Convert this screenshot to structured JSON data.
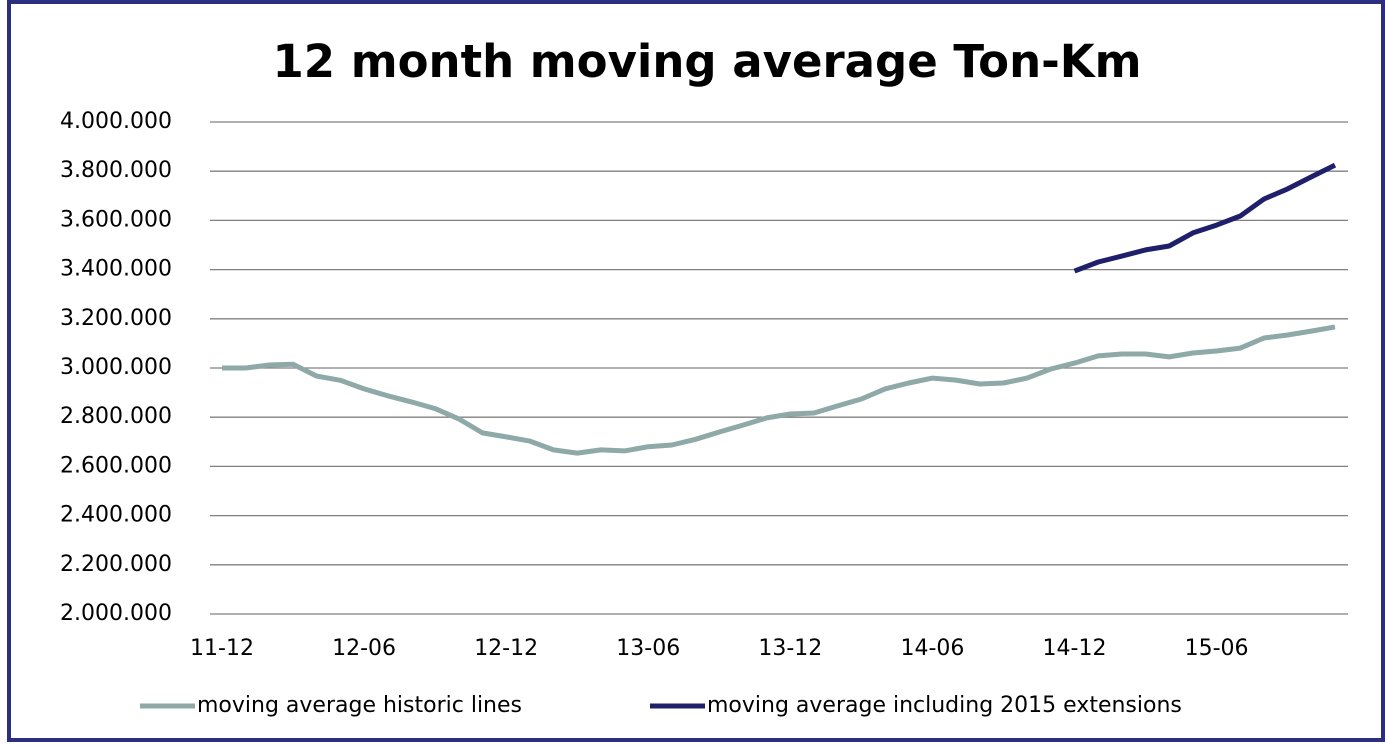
{
  "chart_data": {
    "type": "line",
    "title": "12 month moving average Ton-Km",
    "categories": [
      "11-12",
      null,
      null,
      null,
      null,
      null,
      "12-06",
      null,
      null,
      null,
      null,
      null,
      "12-12",
      null,
      null,
      null,
      null,
      null,
      "13-06",
      null,
      null,
      null,
      null,
      null,
      "13-12",
      null,
      null,
      null,
      null,
      null,
      "14-06",
      null,
      null,
      null,
      null,
      null,
      "14-12",
      null,
      null,
      null,
      null,
      null,
      "15-06",
      null,
      null,
      null,
      null,
      null
    ],
    "series": [
      {
        "name": "moving average historic lines",
        "color": "#8fa8a8",
        "values": [
          3000000,
          3000000,
          3012000,
          3015000,
          2967000,
          2950000,
          2915000,
          2887000,
          2862000,
          2835000,
          2793000,
          2736000,
          2720000,
          2703000,
          2667000,
          2654000,
          2667000,
          2663000,
          2680000,
          2687000,
          2710000,
          2740000,
          2768000,
          2797000,
          2813000,
          2817000,
          2846000,
          2874000,
          2915000,
          2939000,
          2959000,
          2951000,
          2935000,
          2939000,
          2959000,
          2996000,
          3020000,
          3049000,
          3057000,
          3057000,
          3045000,
          3061000,
          3069000,
          3081000,
          3122000,
          3134000,
          3150000,
          3167000
        ]
      },
      {
        "name": "moving average including 2015 extensions",
        "color": "#1f1f6b",
        "values": [
          null,
          null,
          null,
          null,
          null,
          null,
          null,
          null,
          null,
          null,
          null,
          null,
          null,
          null,
          null,
          null,
          null,
          null,
          null,
          null,
          null,
          null,
          null,
          null,
          null,
          null,
          null,
          null,
          null,
          null,
          null,
          null,
          null,
          null,
          null,
          null,
          3394000,
          3431000,
          3455000,
          3480000,
          3496000,
          3549000,
          3581000,
          3618000,
          3687000,
          3728000,
          3777000,
          3825000
        ]
      }
    ],
    "ylim": [
      2000000,
      4000000
    ],
    "yticks": [
      {
        "value": 2000000,
        "label": "2.000.000"
      },
      {
        "value": 2200000,
        "label": "2.200.000"
      },
      {
        "value": 2400000,
        "label": "2.400.000"
      },
      {
        "value": 2600000,
        "label": "2.600.000"
      },
      {
        "value": 2800000,
        "label": "2.800.000"
      },
      {
        "value": 3000000,
        "label": "3.000.000"
      },
      {
        "value": 3200000,
        "label": "3.200.000"
      },
      {
        "value": 3400000,
        "label": "3.400.000"
      },
      {
        "value": 3600000,
        "label": "3.600.000"
      },
      {
        "value": 3800000,
        "label": "3.800.000"
      },
      {
        "value": 4000000,
        "label": "4.000.000"
      }
    ],
    "grid": true,
    "legend": "bottom"
  }
}
